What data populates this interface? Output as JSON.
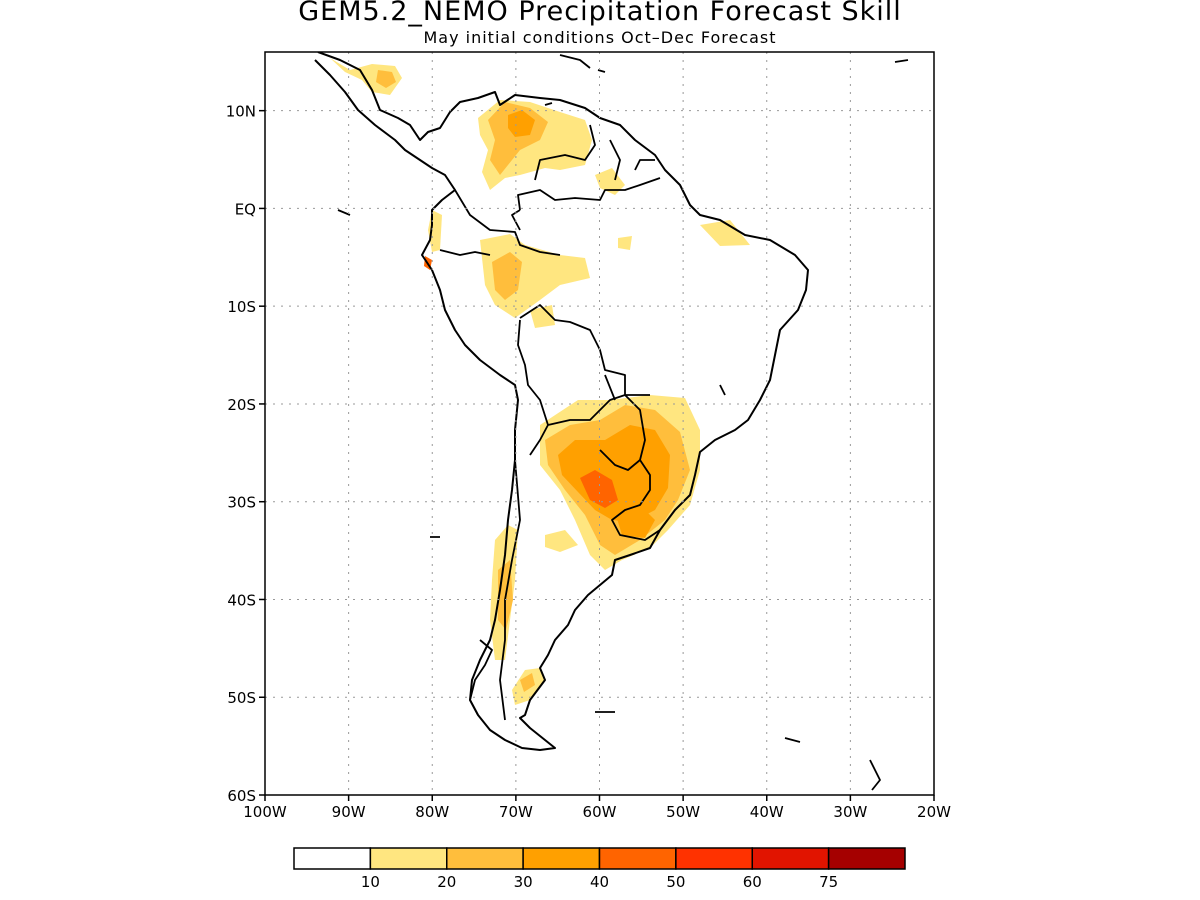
{
  "title": "GEM5.2_NEMO Precipitation Forecast Skill",
  "subtitle": "May initial conditions  Oct–Dec Forecast",
  "map": {
    "lon_range": [
      -100,
      -20
    ],
    "lat_range": [
      -60,
      16
    ],
    "lat_ticks": [
      {
        "value": 10,
        "label": "10N"
      },
      {
        "value": 0,
        "label": "EQ"
      },
      {
        "value": -10,
        "label": "10S"
      },
      {
        "value": -20,
        "label": "20S"
      },
      {
        "value": -30,
        "label": "30S"
      },
      {
        "value": -40,
        "label": "40S"
      },
      {
        "value": -50,
        "label": "50S"
      },
      {
        "value": -60,
        "label": "60S"
      }
    ],
    "lon_ticks": [
      {
        "value": -100,
        "label": "100W"
      },
      {
        "value": -90,
        "label": "90W"
      },
      {
        "value": -80,
        "label": "80W"
      },
      {
        "value": -70,
        "label": "70W"
      },
      {
        "value": -60,
        "label": "60W"
      },
      {
        "value": -50,
        "label": "50W"
      },
      {
        "value": -40,
        "label": "40W"
      },
      {
        "value": -30,
        "label": "30W"
      },
      {
        "value": -20,
        "label": "20W"
      }
    ],
    "grid": "dotted"
  },
  "colorbar": {
    "colors": [
      "#ffffff",
      "#ffe680",
      "#ffbe3c",
      "#ffa000",
      "#ff6400",
      "#ff3200",
      "#e11400",
      "#a50000"
    ],
    "labels": [
      "10",
      "20",
      "30",
      "40",
      "50",
      "60",
      "75"
    ]
  },
  "skill_regions": [
    {
      "level": 1,
      "desc": "Venezuela/Colombia"
    },
    {
      "level": 1,
      "desc": "Peru/Ecuador"
    },
    {
      "level": 1,
      "desc": "SE South America"
    },
    {
      "level": 3,
      "desc": "NE Argentina/Paraguay core"
    },
    {
      "level": 1,
      "desc": "Chile/Patagonia"
    }
  ]
}
